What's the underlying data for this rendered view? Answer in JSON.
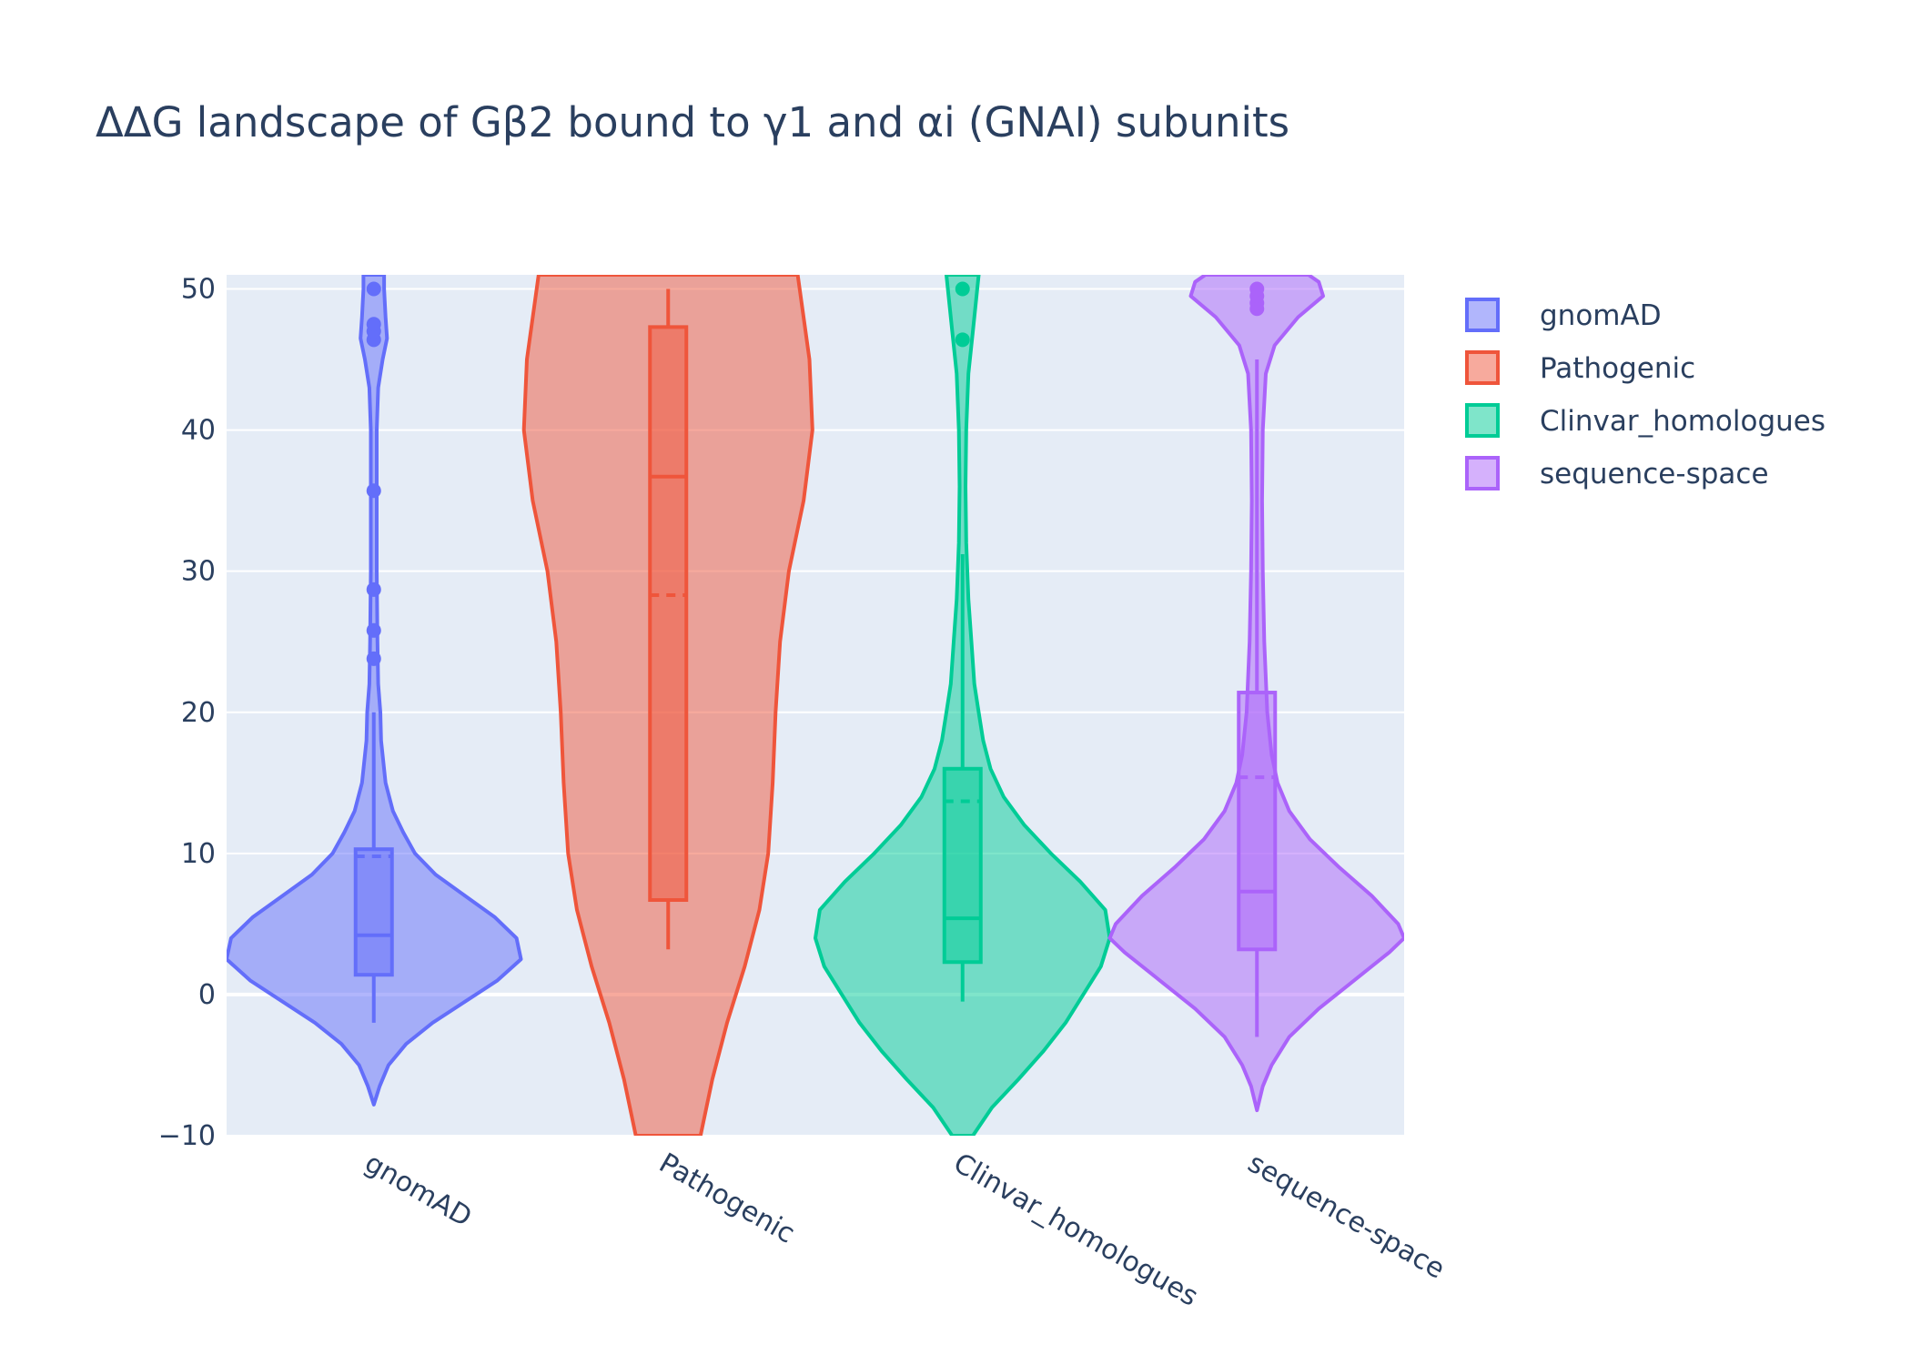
{
  "chart_data": {
    "type": "violin",
    "title": "ΔΔG landscape of Gβ2 bound to γ1 and αi (GNAI) subunits",
    "xlabel": "",
    "ylabel": "",
    "ylim": [
      -10,
      51
    ],
    "y_ticks": [
      -10,
      0,
      10,
      20,
      30,
      40,
      50
    ],
    "y_tick_labels": [
      "−10",
      "0",
      "10",
      "20",
      "30",
      "40",
      "50"
    ],
    "grid": true,
    "legend_position": "top-right",
    "categories": [
      "gnomAD",
      "Pathogenic",
      "Clinvar_homologues",
      "sequence-space"
    ],
    "series": [
      {
        "name": "gnomAD",
        "color": "#636efa",
        "fill": "rgba(99,110,250,0.5)",
        "box": {
          "q1": 1.4,
          "median": 4.2,
          "q3": 10.3,
          "mean": 9.8,
          "lower_fence": -2.0,
          "upper_fence": 20.0
        },
        "outliers": [
          23.8,
          25.8,
          28.7,
          35.7,
          46.4,
          47.0,
          47.5,
          50.0
        ],
        "density": [
          [
            -7.8,
            0.0
          ],
          [
            -6.5,
            0.04
          ],
          [
            -5.0,
            0.1
          ],
          [
            -3.5,
            0.22
          ],
          [
            -2.0,
            0.4
          ],
          [
            -0.5,
            0.62
          ],
          [
            1.0,
            0.84
          ],
          [
            2.5,
            1.0
          ],
          [
            4.0,
            0.97
          ],
          [
            5.5,
            0.82
          ],
          [
            7.0,
            0.62
          ],
          [
            8.5,
            0.42
          ],
          [
            10.0,
            0.28
          ],
          [
            11.5,
            0.2
          ],
          [
            13.0,
            0.13
          ],
          [
            15.0,
            0.08
          ],
          [
            18.0,
            0.05
          ],
          [
            20.0,
            0.045
          ],
          [
            22.0,
            0.03
          ],
          [
            25.0,
            0.025
          ],
          [
            30.0,
            0.02
          ],
          [
            36.0,
            0.02
          ],
          [
            40.0,
            0.02
          ],
          [
            43.0,
            0.03
          ],
          [
            45.0,
            0.06
          ],
          [
            46.5,
            0.09
          ],
          [
            48.0,
            0.08
          ],
          [
            50.0,
            0.07
          ],
          [
            51.0,
            0.07
          ]
        ]
      },
      {
        "name": "Pathogenic",
        "color": "#ef553b",
        "fill": "rgba(239,85,59,0.5)",
        "box": {
          "q1": 6.7,
          "median": 36.7,
          "q3": 47.3,
          "mean": 28.3,
          "lower_fence": 3.2,
          "upper_fence": 50.0
        },
        "outliers": [],
        "density": [
          [
            -10.0,
            0.22
          ],
          [
            -6.0,
            0.3
          ],
          [
            -2.0,
            0.4
          ],
          [
            2.0,
            0.52
          ],
          [
            6.0,
            0.62
          ],
          [
            10.0,
            0.68
          ],
          [
            15.0,
            0.71
          ],
          [
            20.0,
            0.73
          ],
          [
            25.0,
            0.76
          ],
          [
            30.0,
            0.82
          ],
          [
            35.0,
            0.92
          ],
          [
            40.0,
            0.98
          ],
          [
            45.0,
            0.96
          ],
          [
            51.0,
            0.88
          ]
        ]
      },
      {
        "name": "Clinvar_homologues",
        "color": "#00cc96",
        "fill": "rgba(0,204,150,0.5)",
        "box": {
          "q1": 2.3,
          "median": 5.4,
          "q3": 16.0,
          "mean": 13.7,
          "lower_fence": -0.5,
          "upper_fence": 31.2
        },
        "outliers": [
          46.4,
          50.0
        ],
        "density": [
          [
            -10.0,
            0.07
          ],
          [
            -8.0,
            0.2
          ],
          [
            -6.0,
            0.38
          ],
          [
            -4.0,
            0.55
          ],
          [
            -2.0,
            0.7
          ],
          [
            0.0,
            0.82
          ],
          [
            2.0,
            0.94
          ],
          [
            4.0,
            1.0
          ],
          [
            6.0,
            0.97
          ],
          [
            8.0,
            0.8
          ],
          [
            10.0,
            0.6
          ],
          [
            12.0,
            0.42
          ],
          [
            14.0,
            0.28
          ],
          [
            16.0,
            0.19
          ],
          [
            18.0,
            0.14
          ],
          [
            20.0,
            0.11
          ],
          [
            22.0,
            0.08
          ],
          [
            25.0,
            0.06
          ],
          [
            28.0,
            0.04
          ],
          [
            32.0,
            0.025
          ],
          [
            36.0,
            0.02
          ],
          [
            40.0,
            0.025
          ],
          [
            44.0,
            0.04
          ],
          [
            47.0,
            0.07
          ],
          [
            50.0,
            0.1
          ],
          [
            51.0,
            0.11
          ]
        ]
      },
      {
        "name": "sequence-space",
        "color": "#ab63fa",
        "fill": "rgba(171,99,250,0.5)",
        "box": {
          "q1": 3.2,
          "median": 7.3,
          "q3": 21.4,
          "mean": 15.4,
          "lower_fence": -3.0,
          "upper_fence": 45.0
        },
        "outliers": [
          48.6,
          49.0,
          49.5,
          50.0
        ],
        "density": [
          [
            -8.2,
            0.0
          ],
          [
            -6.5,
            0.04
          ],
          [
            -5.0,
            0.1
          ],
          [
            -3.0,
            0.22
          ],
          [
            -1.0,
            0.42
          ],
          [
            1.0,
            0.66
          ],
          [
            3.0,
            0.9
          ],
          [
            4.0,
            1.0
          ],
          [
            5.0,
            0.96
          ],
          [
            7.0,
            0.78
          ],
          [
            9.0,
            0.56
          ],
          [
            11.0,
            0.36
          ],
          [
            13.0,
            0.22
          ],
          [
            15.0,
            0.14
          ],
          [
            17.0,
            0.1
          ],
          [
            20.0,
            0.07
          ],
          [
            25.0,
            0.05
          ],
          [
            30.0,
            0.04
          ],
          [
            35.0,
            0.035
          ],
          [
            40.0,
            0.04
          ],
          [
            44.0,
            0.06
          ],
          [
            46.0,
            0.12
          ],
          [
            48.0,
            0.28
          ],
          [
            49.5,
            0.45
          ],
          [
            50.5,
            0.42
          ],
          [
            51.0,
            0.35
          ]
        ]
      }
    ]
  }
}
